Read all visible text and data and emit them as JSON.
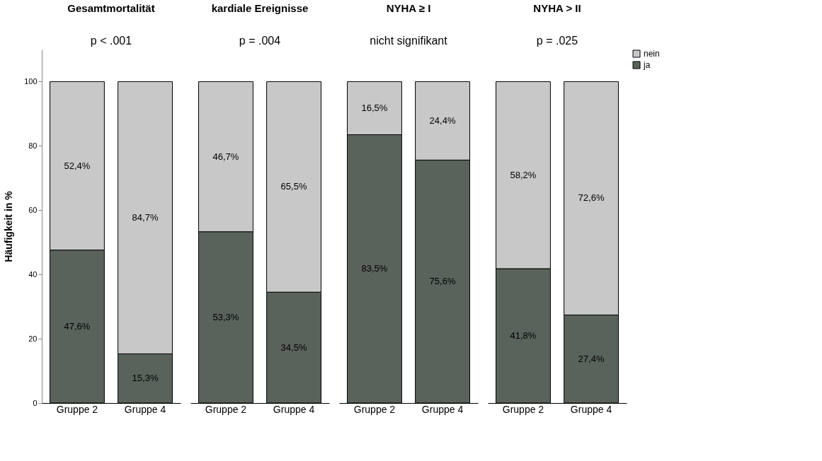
{
  "chart_data": [
    {
      "type": "bar",
      "stacked": true,
      "title": "Gesamtmortalität",
      "ylabel": "Häufigkeit in %",
      "categories": [
        "Gruppe 2",
        "Gruppe 4"
      ],
      "ylim": [
        0,
        110
      ],
      "yticks": [
        0,
        20,
        40,
        60,
        80,
        100
      ],
      "grid": false,
      "legend": "right",
      "annotations": [
        "p < .001"
      ],
      "series": [
        {
          "name": "ja",
          "color": "#5a635b",
          "values": [
            47.6,
            15.3
          ],
          "value_labels": [
            "47,6%",
            "15,3%"
          ]
        },
        {
          "name": "nein",
          "color": "#c8c8c8",
          "values": [
            52.4,
            84.7
          ],
          "value_labels": [
            "52,4%",
            "84,7%"
          ]
        }
      ]
    },
    {
      "type": "bar",
      "stacked": true,
      "title": "kardiale Ereignisse",
      "categories": [
        "Gruppe 2",
        "Gruppe 4"
      ],
      "tick_labels": "x",
      "grid": false,
      "annotations": [
        "p = .004"
      ],
      "series": [
        {
          "name": "ja",
          "color": "#5a635b",
          "values": [
            53.3,
            34.5
          ],
          "value_labels": [
            "53,3%",
            "34,5%"
          ]
        },
        {
          "name": "nein",
          "color": "#c8c8c8",
          "values": [
            46.7,
            65.5
          ],
          "value_labels": [
            "46,7%",
            "65,5%"
          ]
        }
      ]
    },
    {
      "type": "bar",
      "stacked": true,
      "title": "NYHA ≥ I",
      "categories": [
        "Gruppe 2",
        "Gruppe 4"
      ],
      "tick_labels": "x",
      "grid": false,
      "annotations": [
        "nicht signifikant"
      ],
      "series": [
        {
          "name": "ja",
          "color": "#5a635b",
          "values": [
            83.5,
            75.6
          ],
          "value_labels": [
            "83,5%",
            "75,6%"
          ]
        },
        {
          "name": "nein",
          "color": "#c8c8c8",
          "values": [
            16.5,
            24.4
          ],
          "value_labels": [
            "16,5%",
            "24,4%"
          ]
        }
      ]
    },
    {
      "type": "bar",
      "stacked": true,
      "title": "NYHA > II",
      "categories": [
        "Gruppe 2",
        "Gruppe 4"
      ],
      "tick_labels": "x",
      "grid": false,
      "annotations": [
        "p = .025"
      ],
      "series": [
        {
          "name": "ja",
          "color": "#5a635b",
          "values": [
            41.8,
            27.4
          ],
          "value_labels": [
            "41,8%",
            "27,4%"
          ]
        },
        {
          "name": "nein",
          "color": "#c8c8c8",
          "values": [
            58.2,
            72.6
          ],
          "value_labels": [
            "58,2%",
            "72,6%"
          ]
        }
      ]
    }
  ]
}
